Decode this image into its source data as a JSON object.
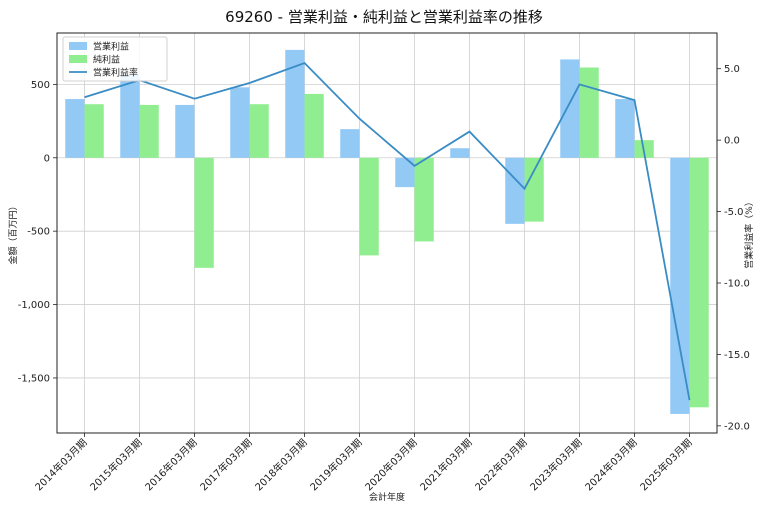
{
  "chart_data": {
    "type": "bar",
    "title": "69260 - 営業利益・純利益と営業利益率の推移",
    "xlabel": "会計年度",
    "ylabel": "金額（百万円）",
    "y2label": "営業利益率（%）",
    "categories": [
      "2014年03月期",
      "2015年03月期",
      "2016年03月期",
      "2017年03月期",
      "2018年03月期",
      "2019年03月期",
      "2020年03月期",
      "2021年03月期",
      "2022年03月期",
      "2023年03月期",
      "2024年03月期",
      "2025年03月期"
    ],
    "series": [
      {
        "name": "営業利益",
        "kind": "bar",
        "axis": "left",
        "color": "#92c9f5",
        "values": [
          400,
          565,
          360,
          480,
          735,
          195,
          -200,
          65,
          -450,
          670,
          400,
          -1745
        ]
      },
      {
        "name": "純利益",
        "kind": "bar",
        "axis": "left",
        "color": "#90ee90",
        "values": [
          365,
          360,
          -750,
          365,
          435,
          -665,
          -570,
          0,
          -435,
          615,
          120,
          -1700
        ]
      },
      {
        "name": "営業利益率",
        "kind": "line",
        "axis": "right",
        "color": "#3a8cc5",
        "values": [
          3.0,
          4.2,
          2.9,
          4.0,
          5.4,
          1.5,
          -1.8,
          0.6,
          -3.4,
          3.9,
          2.8,
          -18.2
        ]
      }
    ],
    "ylim": [
      -1875,
      850
    ],
    "y_ticks": [
      {
        "v": 500,
        "label": "500"
      },
      {
        "v": 0,
        "label": "0"
      },
      {
        "v": -500,
        "label": "-500"
      },
      {
        "v": -1000,
        "label": "-1,000"
      },
      {
        "v": -1500,
        "label": "-1,500"
      }
    ],
    "y2lim": [
      -20.5,
      7.5
    ],
    "y2_ticks": [
      {
        "v": 5,
        "label": "5.0"
      },
      {
        "v": 0,
        "label": "0.0"
      },
      {
        "v": -5,
        "label": "-5.0"
      },
      {
        "v": -10,
        "label": "-10.0"
      },
      {
        "v": -15,
        "label": "-15.0"
      },
      {
        "v": -20,
        "label": "-20.0"
      }
    ],
    "grid": true,
    "legend": "top-left"
  }
}
